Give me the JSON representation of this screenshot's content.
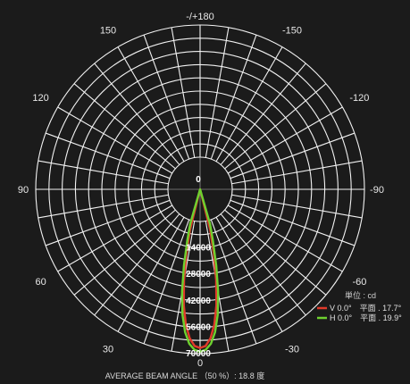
{
  "chart_data": {
    "type": "polar",
    "angle_labels": [
      "-/+180",
      "-150",
      "150",
      "-120",
      "120",
      "-90",
      "90",
      "-60",
      "60",
      "-30",
      "30",
      "0"
    ],
    "angles": [
      180,
      -150,
      150,
      -120,
      120,
      -90,
      90,
      -60,
      60,
      -30,
      30,
      0
    ],
    "radial_max": 70000,
    "radial_ticks": [
      0,
      14000,
      28000,
      42000,
      56000,
      70000
    ],
    "radial_tick_labels": [
      "0",
      "14000",
      "28000",
      "42000",
      "56000",
      "70000"
    ],
    "unit_label": "単位 : cd",
    "series": [
      {
        "name": "V 0.0°　平面 . 17.7°",
        "color": "#e03a2a",
        "beam_angle": 17.7,
        "points": [
          [
            0,
            67000
          ],
          [
            2,
            66000
          ],
          [
            4,
            62000
          ],
          [
            6,
            55000
          ],
          [
            8,
            45000
          ],
          [
            10,
            32000
          ],
          [
            12,
            18000
          ],
          [
            14,
            5000
          ],
          [
            16,
            0
          ]
        ]
      },
      {
        "name": "H 0.0°　平面 . 19.9°",
        "color": "#6ed12f",
        "beam_angle": 19.9,
        "points": [
          [
            0,
            69000
          ],
          [
            2,
            68000
          ],
          [
            4,
            65000
          ],
          [
            6,
            59000
          ],
          [
            8,
            50000
          ],
          [
            10,
            38000
          ],
          [
            12,
            24000
          ],
          [
            14,
            11000
          ],
          [
            16,
            2000
          ],
          [
            17,
            0
          ]
        ]
      }
    ],
    "footer": "AVERAGE BEAM ANGLE （50 %）: 18.8 度"
  }
}
